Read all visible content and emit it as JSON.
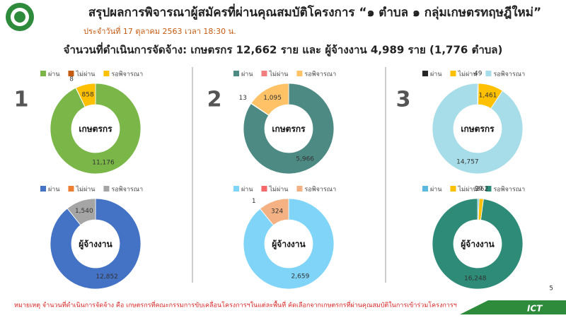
{
  "header": {
    "title": "สรุปผลการพิจารณาผู้สมัครที่ผ่านคุณสมบัติโครงการ “๑ ตำบล ๑ กลุ่มเกษตรทฤษฎีใหม่”",
    "date": "ประจำวันที่ 17 ตุลาคม 2563 เวลา 18:30 น.",
    "headline": "จำนวนที่ดำเนินการจัดจ้าง:  เกษตรกร 12,662 ราย  และ ผู้จ้างงาน 4,989 ราย (1,776 ตำบล)"
  },
  "panels": [
    "1",
    "2",
    "3"
  ],
  "footer": {
    "note": "หมายเหตุ จำนวนที่ดำเนินการจัดจ้าง คือ เกษตรกรที่คณะกรรมการขับเคลื่อนโครงการฯในแต่ละพื้นที่ คัดเลือกจากเกษตรกรที่ผ่านคุณสมบัติในการเข้าร่วมโครงการฯ",
    "page": "5",
    "logo": "ICT"
  },
  "chart_data": [
    {
      "type": "pie",
      "donut": true,
      "center_label": "เกษตรกร",
      "categories": [
        "ผ่าน",
        "ไม่ผ่าน",
        "รอพิจารณา"
      ],
      "colors": [
        "#7ab648",
        "#c55a11",
        "#ffc000"
      ],
      "values": [
        11176,
        8,
        858
      ],
      "value_labels": [
        "11,176",
        "8",
        "858"
      ]
    },
    {
      "type": "pie",
      "donut": true,
      "center_label": "ผู้จ้างงาน",
      "categories": [
        "ผ่าน",
        "ไม่ผ่าน",
        "รอพิจารณา"
      ],
      "colors": [
        "#4472c4",
        "#ed7d31",
        "#a5a5a5"
      ],
      "values": [
        12852,
        0,
        1540
      ],
      "value_labels": [
        "12,852",
        null,
        "1,540"
      ]
    },
    {
      "type": "pie",
      "donut": true,
      "center_label": "เกษตรกร",
      "categories": [
        "ผ่าน",
        "ไม่ผ่าน",
        "รอพิจารณา"
      ],
      "colors": [
        "#4e8a84",
        "#f08080",
        "#ffc266"
      ],
      "values": [
        5966,
        13,
        1095
      ],
      "value_labels": [
        "5,966",
        "13",
        "1,095"
      ]
    },
    {
      "type": "pie",
      "donut": true,
      "center_label": "ผู้จ้างงาน",
      "categories": [
        "ผ่าน",
        "ไม่ผ่าน",
        "รอพิจารณา"
      ],
      "colors": [
        "#7fd4f8",
        "#f4686a",
        "#f4b183"
      ],
      "values": [
        2659,
        1,
        324
      ],
      "value_labels": [
        "2,659",
        "1",
        "324"
      ]
    },
    {
      "type": "pie",
      "donut": true,
      "center_label": "เกษตรกร",
      "categories": [
        "ผ่าน",
        "ไม่ผ่าน",
        "รอพิจารณา"
      ],
      "colors": [
        "#262626",
        "#ffc000",
        "#a6dde8"
      ],
      "values": [
        49,
        1461,
        14757
      ],
      "value_labels": [
        "49",
        "1,461",
        "14,757"
      ]
    },
    {
      "type": "pie",
      "donut": true,
      "center_label": "ผู้จ้างงาน",
      "categories": [
        "ผ่าน",
        "ไม่ผ่าน",
        "รอพิจารณา"
      ],
      "colors": [
        "#5bb8e0",
        "#ffc000",
        "#2e8b78"
      ],
      "values": [
        90,
        262,
        16248
      ],
      "value_labels": [
        "90",
        "262",
        "16,248"
      ]
    }
  ]
}
